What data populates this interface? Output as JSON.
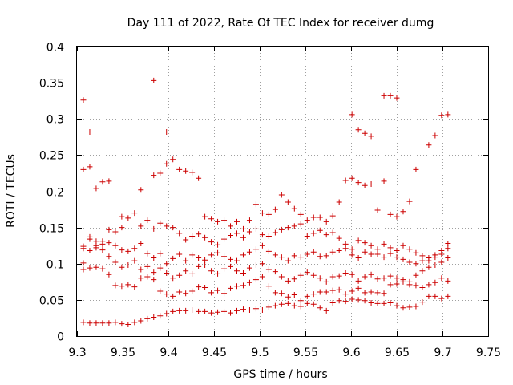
{
  "chart_data": {
    "type": "scatter",
    "title": "Day 111 of 2022, Rate Of TEC Index for receiver dumg",
    "xlabel": "GPS time / hours",
    "ylabel": "ROTI / TECUs",
    "xlim": [
      9.3,
      9.75
    ],
    "ylim": [
      0,
      0.4
    ],
    "x_ticks": [
      "9.3",
      "9.35",
      "9.4",
      "9.45",
      "9.5",
      "9.55",
      "9.6",
      "9.65",
      "9.7",
      "9.75"
    ],
    "y_ticks": [
      "0",
      "0.05",
      "0.1",
      "0.15",
      "0.2",
      "0.25",
      "0.3",
      "0.35",
      "0.4"
    ],
    "grid": true,
    "legend": false,
    "marker": "plus",
    "color": "#cc0000",
    "points": [
      [
        9.307,
        0.019
      ],
      [
        9.314,
        0.018
      ],
      [
        9.321,
        0.018
      ],
      [
        9.328,
        0.018
      ],
      [
        9.335,
        0.018
      ],
      [
        9.342,
        0.019
      ],
      [
        9.349,
        0.017
      ],
      [
        9.356,
        0.016
      ],
      [
        9.363,
        0.019
      ],
      [
        9.37,
        0.021
      ],
      [
        9.377,
        0.024
      ],
      [
        9.384,
        0.026
      ],
      [
        9.391,
        0.028
      ],
      [
        9.398,
        0.031
      ],
      [
        9.405,
        0.034
      ],
      [
        9.412,
        0.035
      ],
      [
        9.419,
        0.035
      ],
      [
        9.426,
        0.036
      ],
      [
        9.433,
        0.034
      ],
      [
        9.44,
        0.034
      ],
      [
        9.447,
        0.032
      ],
      [
        9.454,
        0.033
      ],
      [
        9.461,
        0.034
      ],
      [
        9.468,
        0.032
      ],
      [
        9.475,
        0.035
      ],
      [
        9.482,
        0.037
      ],
      [
        9.489,
        0.036
      ],
      [
        9.496,
        0.038
      ],
      [
        9.503,
        0.036
      ],
      [
        9.51,
        0.04
      ],
      [
        9.517,
        0.042
      ],
      [
        9.524,
        0.044
      ],
      [
        9.531,
        0.045
      ],
      [
        9.538,
        0.042
      ],
      [
        9.545,
        0.041
      ],
      [
        9.552,
        0.045
      ],
      [
        9.559,
        0.044
      ],
      [
        9.566,
        0.039
      ],
      [
        9.573,
        0.035
      ],
      [
        9.58,
        0.046
      ],
      [
        9.587,
        0.049
      ],
      [
        9.594,
        0.048
      ],
      [
        9.601,
        0.051
      ],
      [
        9.608,
        0.05
      ],
      [
        9.615,
        0.049
      ],
      [
        9.622,
        0.046
      ],
      [
        9.629,
        0.045
      ],
      [
        9.636,
        0.045
      ],
      [
        9.643,
        0.046
      ],
      [
        9.65,
        0.042
      ],
      [
        9.657,
        0.039
      ],
      [
        9.664,
        0.04
      ],
      [
        9.671,
        0.041
      ],
      [
        9.678,
        0.047
      ],
      [
        9.685,
        0.055
      ],
      [
        9.692,
        0.055
      ],
      [
        9.699,
        0.052
      ],
      [
        9.706,
        0.055
      ],
      [
        9.307,
        0.092
      ],
      [
        9.314,
        0.094
      ],
      [
        9.321,
        0.095
      ],
      [
        9.328,
        0.093
      ],
      [
        9.335,
        0.085
      ],
      [
        9.342,
        0.07
      ],
      [
        9.349,
        0.069
      ],
      [
        9.356,
        0.071
      ],
      [
        9.363,
        0.068
      ],
      [
        9.37,
        0.08
      ],
      [
        9.377,
        0.082
      ],
      [
        9.384,
        0.078
      ],
      [
        9.391,
        0.062
      ],
      [
        9.398,
        0.058
      ],
      [
        9.405,
        0.055
      ],
      [
        9.412,
        0.061
      ],
      [
        9.419,
        0.059
      ],
      [
        9.426,
        0.062
      ],
      [
        9.433,
        0.068
      ],
      [
        9.44,
        0.067
      ],
      [
        9.447,
        0.06
      ],
      [
        9.454,
        0.063
      ],
      [
        9.461,
        0.059
      ],
      [
        9.468,
        0.066
      ],
      [
        9.475,
        0.069
      ],
      [
        9.482,
        0.07
      ],
      [
        9.489,
        0.074
      ],
      [
        9.496,
        0.078
      ],
      [
        9.503,
        0.082
      ],
      [
        9.51,
        0.069
      ],
      [
        9.517,
        0.06
      ],
      [
        9.524,
        0.059
      ],
      [
        9.531,
        0.054
      ],
      [
        9.538,
        0.057
      ],
      [
        9.545,
        0.049
      ],
      [
        9.552,
        0.055
      ],
      [
        9.559,
        0.058
      ],
      [
        9.566,
        0.061
      ],
      [
        9.573,
        0.061
      ],
      [
        9.58,
        0.063
      ],
      [
        9.587,
        0.064
      ],
      [
        9.594,
        0.058
      ],
      [
        9.601,
        0.062
      ],
      [
        9.608,
        0.066
      ],
      [
        9.615,
        0.06
      ],
      [
        9.622,
        0.061
      ],
      [
        9.629,
        0.06
      ],
      [
        9.636,
        0.059
      ],
      [
        9.643,
        0.071
      ],
      [
        9.65,
        0.072
      ],
      [
        9.657,
        0.075
      ],
      [
        9.664,
        0.071
      ],
      [
        9.671,
        0.07
      ],
      [
        9.678,
        0.067
      ],
      [
        9.685,
        0.071
      ],
      [
        9.692,
        0.074
      ],
      [
        9.699,
        0.08
      ],
      [
        9.706,
        0.076
      ],
      [
        9.307,
        0.121
      ],
      [
        9.314,
        0.118
      ],
      [
        9.321,
        0.125
      ],
      [
        9.328,
        0.119
      ],
      [
        9.335,
        0.11
      ],
      [
        9.342,
        0.102
      ],
      [
        9.349,
        0.095
      ],
      [
        9.356,
        0.098
      ],
      [
        9.363,
        0.104
      ],
      [
        9.37,
        0.092
      ],
      [
        9.377,
        0.096
      ],
      [
        9.384,
        0.088
      ],
      [
        9.391,
        0.094
      ],
      [
        9.398,
        0.087
      ],
      [
        9.405,
        0.08
      ],
      [
        9.412,
        0.084
      ],
      [
        9.419,
        0.09
      ],
      [
        9.426,
        0.086
      ],
      [
        9.433,
        0.096
      ],
      [
        9.44,
        0.098
      ],
      [
        9.447,
        0.09
      ],
      [
        9.454,
        0.086
      ],
      [
        9.461,
        0.093
      ],
      [
        9.468,
        0.096
      ],
      [
        9.475,
        0.09
      ],
      [
        9.482,
        0.087
      ],
      [
        9.489,
        0.094
      ],
      [
        9.496,
        0.098
      ],
      [
        9.503,
        0.1
      ],
      [
        9.51,
        0.092
      ],
      [
        9.517,
        0.089
      ],
      [
        9.524,
        0.082
      ],
      [
        9.531,
        0.076
      ],
      [
        9.538,
        0.079
      ],
      [
        9.545,
        0.084
      ],
      [
        9.552,
        0.088
      ],
      [
        9.559,
        0.084
      ],
      [
        9.566,
        0.08
      ],
      [
        9.573,
        0.075
      ],
      [
        9.58,
        0.082
      ],
      [
        9.587,
        0.083
      ],
      [
        9.594,
        0.087
      ],
      [
        9.601,
        0.085
      ],
      [
        9.608,
        0.076
      ],
      [
        9.615,
        0.082
      ],
      [
        9.622,
        0.085
      ],
      [
        9.629,
        0.079
      ],
      [
        9.636,
        0.08
      ],
      [
        9.643,
        0.083
      ],
      [
        9.65,
        0.08
      ],
      [
        9.657,
        0.078
      ],
      [
        9.664,
        0.075
      ],
      [
        9.671,
        0.084
      ],
      [
        9.678,
        0.09
      ],
      [
        9.685,
        0.095
      ],
      [
        9.692,
        0.098
      ],
      [
        9.699,
        0.102
      ],
      [
        9.706,
        0.108
      ],
      [
        9.307,
        0.101
      ],
      [
        9.314,
        0.134
      ],
      [
        9.321,
        0.131
      ],
      [
        9.328,
        0.127
      ],
      [
        9.335,
        0.129
      ],
      [
        9.342,
        0.125
      ],
      [
        9.349,
        0.119
      ],
      [
        9.356,
        0.117
      ],
      [
        9.363,
        0.121
      ],
      [
        9.37,
        0.128
      ],
      [
        9.377,
        0.114
      ],
      [
        9.384,
        0.108
      ],
      [
        9.391,
        0.114
      ],
      [
        9.398,
        0.1
      ],
      [
        9.405,
        0.107
      ],
      [
        9.412,
        0.113
      ],
      [
        9.419,
        0.104
      ],
      [
        9.426,
        0.112
      ],
      [
        9.433,
        0.108
      ],
      [
        9.44,
        0.105
      ],
      [
        9.447,
        0.112
      ],
      [
        9.454,
        0.115
      ],
      [
        9.461,
        0.11
      ],
      [
        9.468,
        0.106
      ],
      [
        9.475,
        0.104
      ],
      [
        9.482,
        0.112
      ],
      [
        9.489,
        0.116
      ],
      [
        9.496,
        0.12
      ],
      [
        9.503,
        0.125
      ],
      [
        9.51,
        0.117
      ],
      [
        9.517,
        0.112
      ],
      [
        9.524,
        0.109
      ],
      [
        9.531,
        0.104
      ],
      [
        9.538,
        0.111
      ],
      [
        9.545,
        0.109
      ],
      [
        9.552,
        0.113
      ],
      [
        9.559,
        0.116
      ],
      [
        9.566,
        0.11
      ],
      [
        9.573,
        0.111
      ],
      [
        9.58,
        0.116
      ],
      [
        9.587,
        0.118
      ],
      [
        9.594,
        0.121
      ],
      [
        9.601,
        0.112
      ],
      [
        9.608,
        0.108
      ],
      [
        9.615,
        0.116
      ],
      [
        9.622,
        0.113
      ],
      [
        9.629,
        0.113
      ],
      [
        9.636,
        0.109
      ],
      [
        9.643,
        0.114
      ],
      [
        9.65,
        0.109
      ],
      [
        9.657,
        0.106
      ],
      [
        9.664,
        0.102
      ],
      [
        9.671,
        0.1
      ],
      [
        9.678,
        0.104
      ],
      [
        9.685,
        0.108
      ],
      [
        9.692,
        0.112
      ],
      [
        9.699,
        0.118
      ],
      [
        9.706,
        0.128
      ],
      [
        9.307,
        0.124
      ],
      [
        9.314,
        0.137
      ],
      [
        9.321,
        0.122
      ],
      [
        9.328,
        0.131
      ],
      [
        9.335,
        0.147
      ],
      [
        9.342,
        0.144
      ],
      [
        9.349,
        0.165
      ],
      [
        9.356,
        0.163
      ],
      [
        9.363,
        0.17
      ],
      [
        9.37,
        0.152
      ],
      [
        9.377,
        0.16
      ],
      [
        9.384,
        0.148
      ],
      [
        9.391,
        0.156
      ],
      [
        9.398,
        0.152
      ],
      [
        9.405,
        0.15
      ],
      [
        9.412,
        0.142
      ],
      [
        9.419,
        0.133
      ],
      [
        9.426,
        0.138
      ],
      [
        9.433,
        0.141
      ],
      [
        9.44,
        0.136
      ],
      [
        9.447,
        0.13
      ],
      [
        9.454,
        0.126
      ],
      [
        9.461,
        0.134
      ],
      [
        9.468,
        0.139
      ],
      [
        9.475,
        0.142
      ],
      [
        9.482,
        0.136
      ],
      [
        9.489,
        0.144
      ],
      [
        9.496,
        0.148
      ],
      [
        9.503,
        0.14
      ],
      [
        9.51,
        0.138
      ],
      [
        9.517,
        0.143
      ],
      [
        9.524,
        0.147
      ],
      [
        9.531,
        0.15
      ],
      [
        9.538,
        0.152
      ],
      [
        9.545,
        0.155
      ],
      [
        9.552,
        0.138
      ],
      [
        9.559,
        0.142
      ],
      [
        9.566,
        0.146
      ],
      [
        9.573,
        0.14
      ],
      [
        9.58,
        0.143
      ],
      [
        9.587,
        0.135
      ],
      [
        9.594,
        0.127
      ],
      [
        9.601,
        0.12
      ],
      [
        9.608,
        0.132
      ],
      [
        9.615,
        0.129
      ],
      [
        9.622,
        0.125
      ],
      [
        9.629,
        0.12
      ],
      [
        9.636,
        0.127
      ],
      [
        9.643,
        0.122
      ],
      [
        9.65,
        0.118
      ],
      [
        9.657,
        0.125
      ],
      [
        9.664,
        0.12
      ],
      [
        9.671,
        0.115
      ],
      [
        9.678,
        0.111
      ],
      [
        9.685,
        0.104
      ],
      [
        9.692,
        0.109
      ],
      [
        9.699,
        0.113
      ],
      [
        9.706,
        0.121
      ],
      [
        9.307,
        0.23
      ],
      [
        9.314,
        0.234
      ],
      [
        9.321,
        0.204
      ],
      [
        9.328,
        0.213
      ],
      [
        9.335,
        0.214
      ],
      [
        9.349,
        0.15
      ],
      [
        9.37,
        0.202
      ],
      [
        9.384,
        0.222
      ],
      [
        9.391,
        0.225
      ],
      [
        9.398,
        0.238
      ],
      [
        9.405,
        0.244
      ],
      [
        9.412,
        0.23
      ],
      [
        9.419,
        0.228
      ],
      [
        9.426,
        0.226
      ],
      [
        9.433,
        0.218
      ],
      [
        9.44,
        0.165
      ],
      [
        9.447,
        0.162
      ],
      [
        9.454,
        0.158
      ],
      [
        9.461,
        0.16
      ],
      [
        9.468,
        0.152
      ],
      [
        9.475,
        0.158
      ],
      [
        9.482,
        0.148
      ],
      [
        9.489,
        0.16
      ],
      [
        9.496,
        0.182
      ],
      [
        9.503,
        0.17
      ],
      [
        9.51,
        0.168
      ],
      [
        9.517,
        0.175
      ],
      [
        9.524,
        0.195
      ],
      [
        9.531,
        0.185
      ],
      [
        9.538,
        0.176
      ],
      [
        9.545,
        0.168
      ],
      [
        9.552,
        0.16
      ],
      [
        9.559,
        0.164
      ],
      [
        9.566,
        0.164
      ],
      [
        9.573,
        0.158
      ],
      [
        9.58,
        0.166
      ],
      [
        9.587,
        0.185
      ],
      [
        9.594,
        0.215
      ],
      [
        9.601,
        0.218
      ],
      [
        9.608,
        0.212
      ],
      [
        9.615,
        0.208
      ],
      [
        9.622,
        0.21
      ],
      [
        9.629,
        0.174
      ],
      [
        9.636,
        0.214
      ],
      [
        9.643,
        0.168
      ],
      [
        9.65,
        0.165
      ],
      [
        9.657,
        0.172
      ],
      [
        9.664,
        0.186
      ],
      [
        9.671,
        0.23
      ],
      [
        9.685,
        0.264
      ],
      [
        9.692,
        0.277
      ],
      [
        9.307,
        0.326
      ],
      [
        9.314,
        0.282
      ],
      [
        9.384,
        0.353
      ],
      [
        9.398,
        0.282
      ],
      [
        9.601,
        0.306
      ],
      [
        9.608,
        0.285
      ],
      [
        9.615,
        0.28
      ],
      [
        9.622,
        0.276
      ],
      [
        9.636,
        0.332
      ],
      [
        9.643,
        0.332
      ],
      [
        9.65,
        0.329
      ],
      [
        9.699,
        0.305
      ],
      [
        9.706,
        0.306
      ]
    ]
  }
}
